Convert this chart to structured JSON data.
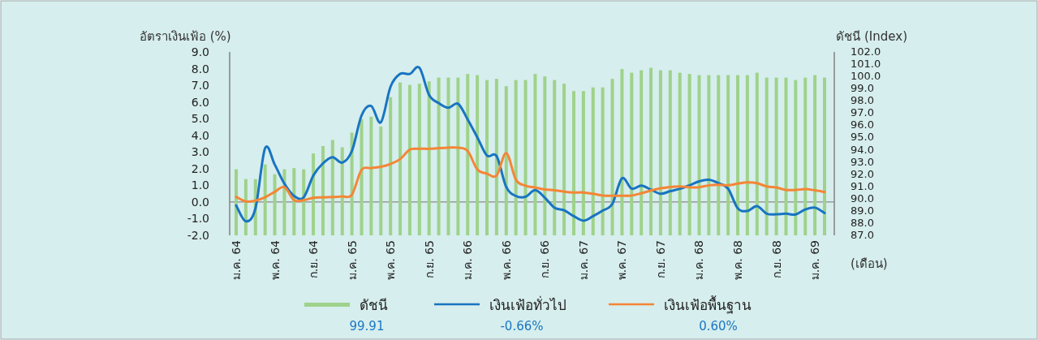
{
  "chart_data": {
    "type": "line",
    "xlabel": "(เดือน)",
    "ylabel": "อัตราเงินเฟ้อ (%)",
    "y2label": "ดัชนี (Index)",
    "categories": [
      "ม.ค. 64",
      null,
      null,
      null,
      "พ.ค. 64",
      null,
      null,
      null,
      "ก.ย. 64",
      null,
      null,
      null,
      "ม.ค. 65",
      null,
      null,
      null,
      "พ.ค. 65",
      null,
      null,
      null,
      "ก.ย. 65",
      null,
      null,
      null,
      "ม.ค. 66",
      null,
      null,
      null,
      "พ.ค. 66",
      null,
      null,
      null,
      "ก.ย. 66",
      null,
      null,
      null,
      "ม.ค. 67",
      null,
      null,
      null,
      "พ.ค. 67",
      null,
      null,
      null,
      "ก.ย. 67",
      null,
      null,
      null,
      "ม.ค. 68",
      null,
      null,
      null,
      "พ.ค. 68",
      null,
      null,
      null,
      "ก.ย. 68",
      null,
      null,
      null,
      "ม.ค. 69",
      null
    ],
    "series": [
      {
        "name": "ดัชนี",
        "type": "bar",
        "axis": "y2",
        "color": "#9fd28b",
        "values": [
          92.4,
          91.6,
          91.6,
          92.8,
          92.0,
          92.4,
          92.5,
          92.4,
          93.7,
          94.3,
          94.8,
          94.2,
          95.4,
          96.5,
          96.7,
          95.9,
          98.3,
          99.5,
          99.3,
          99.4,
          99.6,
          99.9,
          99.9,
          99.9,
          100.2,
          100.1,
          99.7,
          99.8,
          99.2,
          99.7,
          99.7,
          100.2,
          100.0,
          99.7,
          99.4,
          98.8,
          98.8,
          99.1,
          99.1,
          99.8,
          100.6,
          100.3,
          100.5,
          100.7,
          100.5,
          100.5,
          100.3,
          100.2,
          100.1,
          100.1,
          100.1,
          100.1,
          100.1,
          100.1,
          100.3,
          99.9,
          99.9,
          99.9,
          99.7,
          99.9,
          100.1,
          99.9
        ]
      },
      {
        "name": "เงินเฟ้อทั่วไป",
        "color": "#1874c1",
        "values": [
          -0.21,
          -1.16,
          -0.38,
          3.23,
          2.24,
          1.1,
          0.36,
          0.28,
          1.59,
          2.32,
          2.69,
          2.36,
          3.06,
          5.19,
          5.76,
          4.78,
          6.91,
          7.68,
          7.68,
          8.05,
          6.42,
          5.93,
          5.65,
          5.89,
          4.95,
          3.88,
          2.78,
          2.75,
          0.9,
          0.36,
          0.31,
          0.71,
          0.26,
          -0.34,
          -0.5,
          -0.85,
          -1.12,
          -0.85,
          -0.52,
          -0.11,
          1.42,
          0.8,
          0.98,
          0.74,
          0.49,
          0.65,
          0.79,
          1.0,
          1.24,
          1.33,
          1.13,
          0.8,
          -0.38,
          -0.54,
          -0.25,
          -0.7,
          -0.74,
          -0.7,
          -0.75,
          -0.45,
          -0.34,
          -0.66
        ]
      },
      {
        "name": "เงินเฟ้อพื้นฐาน",
        "color": "#f58536",
        "values": [
          0.31,
          0.03,
          0.08,
          0.28,
          0.61,
          0.89,
          0.11,
          0.11,
          0.25,
          0.28,
          0.3,
          0.33,
          0.44,
          1.92,
          2.03,
          2.11,
          2.28,
          2.57,
          3.14,
          3.19,
          3.19,
          3.23,
          3.26,
          3.26,
          3.06,
          1.95,
          1.7,
          1.59,
          2.93,
          1.34,
          0.98,
          0.87,
          0.75,
          0.7,
          0.62,
          0.57,
          0.57,
          0.49,
          0.39,
          0.37,
          0.37,
          0.39,
          0.52,
          0.69,
          0.82,
          0.9,
          0.93,
          0.88,
          0.88,
          1.0,
          1.03,
          1.0,
          1.1,
          1.18,
          1.13,
          0.93,
          0.87,
          0.72,
          0.72,
          0.77,
          0.7,
          0.6
        ]
      }
    ],
    "ylim": [
      -2,
      9
    ],
    "yticks": [
      {
        "value": -2,
        "label": "-2.0"
      },
      {
        "value": -1,
        "label": "-1.0"
      },
      {
        "value": 0,
        "label": "0.0"
      },
      {
        "value": 1,
        "label": "1.0"
      },
      {
        "value": 2,
        "label": "2.0"
      },
      {
        "value": 3,
        "label": "3.0"
      },
      {
        "value": 4,
        "label": "4.0"
      },
      {
        "value": 5,
        "label": "5.0"
      },
      {
        "value": 6,
        "label": "6.0"
      },
      {
        "value": 7,
        "label": "7.0"
      },
      {
        "value": 8,
        "label": "8.0"
      },
      {
        "value": 9,
        "label": "9.0"
      }
    ],
    "y2lim": [
      87,
      102
    ],
    "y2ticks": [
      {
        "value": 87,
        "label": "87.0"
      },
      {
        "value": 88,
        "label": "88.0"
      },
      {
        "value": 89,
        "label": "89.0"
      },
      {
        "value": 90,
        "label": "90.0"
      },
      {
        "value": 91,
        "label": "91.0"
      },
      {
        "value": 92,
        "label": "92.0"
      },
      {
        "value": 93,
        "label": "93.0"
      },
      {
        "value": 94,
        "label": "94.0"
      },
      {
        "value": 95,
        "label": "95.0"
      },
      {
        "value": 96,
        "label": "96.0"
      },
      {
        "value": 97,
        "label": "97.0"
      },
      {
        "value": 98,
        "label": "98.0"
      },
      {
        "value": 99,
        "label": "99.0"
      },
      {
        "value": 100,
        "label": "100.0"
      },
      {
        "value": 101,
        "label": "101.0"
      },
      {
        "value": 102,
        "label": "102.0"
      }
    ],
    "ref_lines": [
      {
        "axis": "y",
        "value": 0,
        "color": "#8a8a8a"
      }
    ],
    "legend": "bottom",
    "annotations": [
      "99.91",
      "-0.66%",
      "0.60%"
    ]
  }
}
